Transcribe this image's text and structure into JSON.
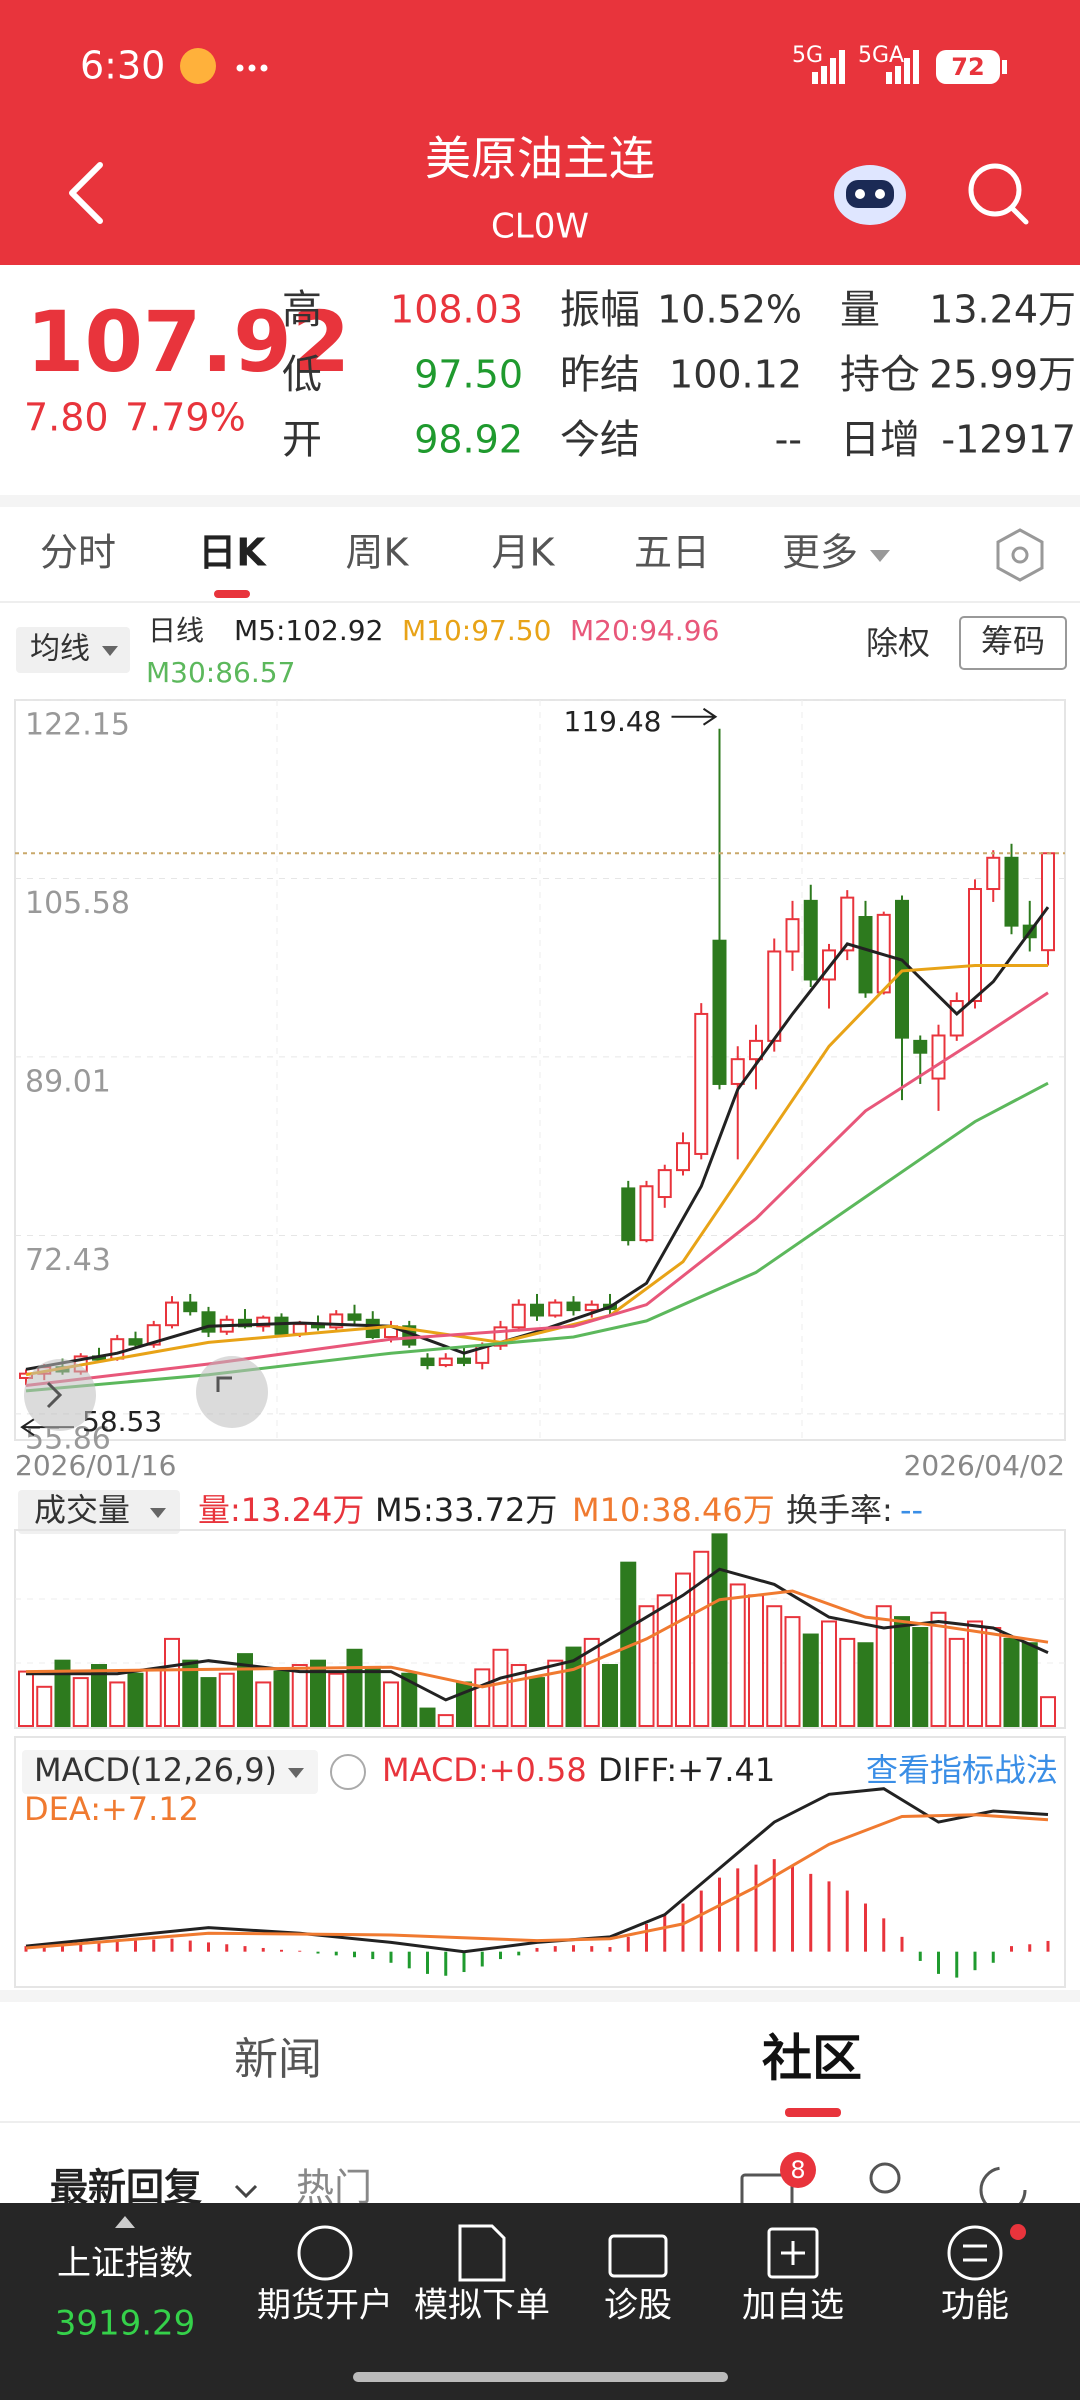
{
  "status_bar": {
    "time": "6:30",
    "net1": "5G",
    "net2": "5GA",
    "battery": "72"
  },
  "header": {
    "title": "美原油主连",
    "subtitle": "CL0W"
  },
  "quote": {
    "price": "107.92",
    "change": "7.80",
    "change_pct": "7.79%",
    "fields": [
      {
        "label": "高",
        "value": "108.03",
        "color": "#e8343c"
      },
      {
        "label": "振幅",
        "value": "10.52%",
        "color": "#333333"
      },
      {
        "label": "量",
        "value": "13.24万",
        "color": "#333333"
      },
      {
        "label": "低",
        "value": "97.50",
        "color": "#1f9a2e"
      },
      {
        "label": "昨结",
        "value": "100.12",
        "color": "#333333"
      },
      {
        "label": "持仓",
        "value": "25.99万",
        "color": "#333333"
      },
      {
        "label": "开",
        "value": "98.92",
        "color": "#1f9a2e"
      },
      {
        "label": "今结",
        "value": "--",
        "color": "#333333"
      },
      {
        "label": "日增",
        "value": "-12917",
        "color": "#333333"
      }
    ]
  },
  "tabs": {
    "items": [
      "分时",
      "日K",
      "周K",
      "月K",
      "五日",
      "更多"
    ],
    "active": 1
  },
  "indicator_bar": {
    "selector": "均线",
    "period": "日线",
    "exright": "除权",
    "chips": "筹码"
  },
  "chart_data": [
    {
      "type": "candlestick",
      "categories": [
        "2026/01/16",
        null,
        null,
        null,
        null,
        null,
        null,
        null,
        null,
        null,
        null,
        null,
        null,
        null,
        null,
        null,
        null,
        null,
        null,
        null,
        null,
        null,
        null,
        null,
        null,
        null,
        null,
        null,
        null,
        null,
        null,
        null,
        null,
        null,
        null,
        null,
        null,
        null,
        null,
        null,
        null,
        null,
        null,
        null,
        null,
        null,
        null,
        null,
        null,
        null,
        null,
        null,
        null,
        null,
        null,
        null,
        "2026/04/02"
      ],
      "open": [
        59.2,
        59.6,
        60.2,
        59.8,
        61.2,
        61.0,
        62.8,
        62.3,
        64.1,
        66.2,
        65.3,
        63.5,
        64.6,
        64.0,
        64.8,
        63.3,
        64.2,
        63.9,
        65.1,
        64.6,
        63.0,
        64.0,
        61.0,
        60.4,
        61.0,
        60.6,
        62.2,
        63.9,
        66.0,
        65.0,
        66.2,
        65.5,
        66.0,
        76.8,
        72.0,
        76.0,
        78.5,
        80.0,
        99.8,
        86.5,
        88.8,
        90.5,
        98.8,
        103.5,
        96.2,
        98.9,
        102.0,
        95.0,
        103.5,
        90.5,
        87.0,
        91.0,
        94.2,
        104.6,
        107.5,
        101.2,
        98.92
      ],
      "high": [
        60.0,
        60.5,
        61.0,
        61.5,
        62.0,
        63.2,
        63.5,
        64.5,
        66.8,
        67.0,
        65.8,
        65.0,
        65.6,
        65.0,
        65.2,
        64.5,
        65.0,
        65.5,
        66.0,
        65.4,
        64.5,
        64.5,
        61.5,
        61.5,
        62.0,
        62.5,
        64.5,
        66.5,
        67.0,
        66.5,
        66.8,
        66.4,
        67.0,
        77.5,
        77.5,
        79.0,
        82.0,
        94.0,
        119.48,
        90.0,
        92.0,
        100.0,
        103.5,
        105.0,
        99.5,
        104.5,
        103.5,
        102.5,
        104.0,
        91.0,
        92.0,
        95.0,
        105.5,
        108.2,
        108.8,
        103.5,
        108.03
      ],
      "low": [
        58.53,
        59.0,
        59.5,
        59.5,
        60.6,
        60.8,
        62.0,
        62.0,
        63.8,
        65.0,
        63.0,
        63.2,
        63.8,
        63.5,
        63.0,
        63.0,
        63.6,
        63.5,
        64.2,
        62.8,
        62.5,
        62.0,
        60.0,
        60.2,
        60.3,
        60.0,
        61.8,
        63.5,
        64.5,
        64.8,
        65.0,
        64.8,
        65.0,
        71.5,
        71.8,
        75.0,
        78.0,
        79.5,
        86.0,
        79.5,
        86.0,
        89.5,
        97.0,
        95.5,
        93.5,
        98.0,
        94.5,
        94.8,
        85.0,
        86.5,
        84.0,
        90.5,
        93.5,
        103.4,
        100.4,
        98.8,
        97.5
      ],
      "close": [
        59.6,
        60.2,
        59.8,
        61.2,
        60.9,
        62.8,
        62.3,
        64.1,
        66.2,
        65.4,
        63.5,
        64.6,
        64.0,
        64.8,
        63.3,
        64.2,
        63.9,
        65.1,
        64.6,
        63.0,
        64.0,
        62.3,
        60.4,
        61.0,
        60.6,
        62.2,
        63.9,
        66.0,
        65.0,
        66.2,
        65.5,
        66.0,
        65.6,
        72.0,
        77.0,
        78.5,
        81.0,
        93.0,
        86.5,
        88.8,
        90.5,
        98.8,
        101.8,
        96.2,
        98.9,
        103.8,
        95.0,
        102.2,
        90.8,
        89.4,
        91.0,
        94.2,
        104.6,
        107.5,
        101.2,
        100.12,
        107.92
      ],
      "up_color": "#e8343c",
      "down_color": "#2d7a1e",
      "ylim": [
        53.44,
        122.15
      ],
      "yticks": [
        122.15,
        105.58,
        89.01,
        72.43,
        55.86
      ],
      "grid": true,
      "max_label": "119.48",
      "min_label": "58.53",
      "series": [
        {
          "name": "M5:102.92",
          "color": "#222222",
          "x": [
            0,
            5,
            10,
            15,
            20,
            24,
            28,
            32,
            34,
            37,
            39,
            42,
            45,
            48,
            51,
            53,
            56
          ],
          "values": [
            60,
            61.5,
            64,
            64.3,
            64,
            61.5,
            63.5,
            65.8,
            68,
            77,
            86,
            93,
            99.5,
            98,
            93,
            96,
            102.92
          ]
        },
        {
          "name": "M10:97.50",
          "color": "#e8a317",
          "x": [
            0,
            10,
            20,
            26,
            32,
            36,
            40,
            44,
            48,
            52,
            56
          ],
          "values": [
            59.5,
            62.5,
            64,
            62.5,
            65,
            70,
            80,
            90,
            97,
            97.5,
            97.5
          ]
        },
        {
          "name": "M20:94.96",
          "color": "#e8577a",
          "x": [
            0,
            10,
            20,
            30,
            34,
            40,
            46,
            52,
            56
          ],
          "values": [
            58.5,
            60.5,
            62.8,
            64,
            66,
            74,
            84,
            90.5,
            94.96
          ]
        },
        {
          "name": "M30:86.57",
          "color": "#5cb85c",
          "x": [
            0,
            10,
            20,
            30,
            34,
            40,
            46,
            52,
            56
          ],
          "values": [
            58,
            59.5,
            61.5,
            63,
            64.5,
            69,
            76,
            83,
            86.57
          ]
        }
      ]
    },
    {
      "type": "bar",
      "title": "成交量",
      "label": "量:13.24万",
      "values": [
        25,
        18,
        30,
        22,
        28,
        20,
        24,
        26,
        40,
        30,
        22,
        24,
        33,
        20,
        25,
        28,
        30,
        24,
        35,
        26,
        20,
        24,
        8,
        5,
        20,
        26,
        35,
        28,
        22,
        30,
        36,
        40,
        28,
        75,
        55,
        60,
        70,
        80,
        88,
        65,
        60,
        55,
        50,
        42,
        48,
        40,
        38,
        55,
        50,
        45,
        52,
        40,
        48,
        45,
        40,
        38,
        13.24
      ],
      "ylim": [
        0,
        90
      ],
      "turnover_label": "换手率:",
      "turnover_value": "--",
      "series": [
        {
          "name": "M5:33.72万",
          "color": "#222222",
          "x": [
            0,
            5,
            10,
            15,
            20,
            23,
            26,
            30,
            33,
            36,
            38,
            41,
            44,
            47,
            50,
            53,
            56
          ],
          "values": [
            24,
            24,
            30,
            25,
            25,
            12,
            22,
            30,
            45,
            60,
            72,
            65,
            50,
            45,
            48,
            45,
            33.72
          ]
        },
        {
          "name": "M10:38.46万",
          "color": "#f07a30",
          "x": [
            0,
            10,
            20,
            25,
            30,
            34,
            38,
            42,
            46,
            50,
            56
          ],
          "values": [
            25,
            26,
            27,
            18,
            26,
            40,
            58,
            62,
            50,
            46,
            38.46
          ]
        }
      ]
    },
    {
      "type": "macd",
      "title": "MACD(12,26,9)",
      "label": "MACD:+0.58",
      "link": "查看指标战法",
      "values": [
        0.3,
        0.35,
        0.4,
        0.45,
        0.5,
        0.55,
        0.6,
        0.65,
        0.7,
        0.6,
        0.5,
        0.4,
        0.3,
        0.2,
        0.1,
        0.05,
        -0.1,
        -0.2,
        -0.3,
        -0.4,
        -0.6,
        -0.9,
        -1.2,
        -1.3,
        -1.1,
        -0.8,
        -0.4,
        -0.2,
        0.2,
        0.3,
        0.35,
        0.3,
        0.25,
        0.8,
        1.5,
        2.0,
        2.6,
        3.3,
        4.0,
        4.5,
        4.7,
        5.0,
        4.6,
        4.2,
        3.8,
        3.3,
        2.6,
        1.8,
        0.8,
        -0.5,
        -1.2,
        -1.4,
        -1.0,
        -0.6,
        0.3,
        0.4,
        0.58
      ],
      "ylim": [
        -1.8,
        11
      ],
      "series": [
        {
          "name": "DIFF:+7.41",
          "color": "#222222",
          "x": [
            0,
            5,
            10,
            15,
            20,
            24,
            28,
            32,
            35,
            38,
            41,
            44,
            47,
            50,
            53,
            56
          ],
          "values": [
            0.3,
            0.8,
            1.3,
            1.0,
            0.5,
            0.0,
            0.5,
            0.8,
            2.0,
            4.5,
            7.0,
            8.5,
            8.8,
            7.0,
            7.6,
            7.41
          ]
        },
        {
          "name": "DEA:+7.12",
          "color": "#f07a30",
          "x": [
            0,
            10,
            20,
            28,
            32,
            36,
            40,
            44,
            48,
            52,
            56
          ],
          "values": [
            0.2,
            1.0,
            0.9,
            0.6,
            0.7,
            1.5,
            3.5,
            5.8,
            7.3,
            7.4,
            7.12
          ]
        }
      ]
    }
  ],
  "news_tabs": {
    "items": [
      "新闻",
      "社区"
    ],
    "active": 1
  },
  "feed": {
    "sort": "最新回复",
    "hot": "热门",
    "badge": "8"
  },
  "bottom_bar": {
    "index_name": "上证指数",
    "index_value": "3919.29",
    "items": [
      "期货开户",
      "模拟下单",
      "诊股",
      "加自选",
      "功能"
    ]
  }
}
